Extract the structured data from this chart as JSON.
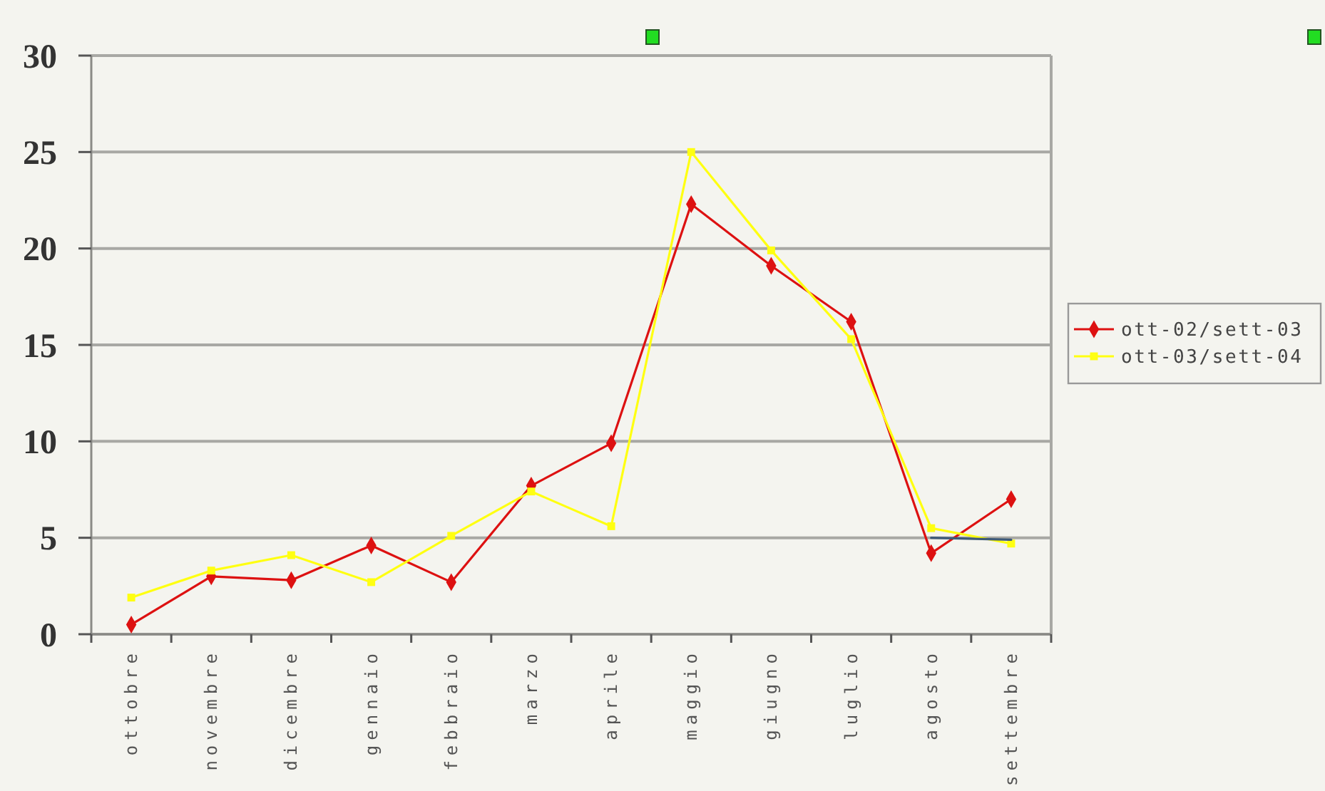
{
  "chart_data": {
    "type": "line",
    "categories": [
      "ottobre",
      "novembre",
      "dicembre",
      "gennaio",
      "febbraio",
      "marzo",
      "aprile",
      "maggio",
      "giugno",
      "luglio",
      "agosto",
      "settembre"
    ],
    "series": [
      {
        "name": "ott-02/sett-03",
        "color": "#dd1111",
        "marker": "diamond",
        "values": [
          0.5,
          3.0,
          2.8,
          4.6,
          2.7,
          7.7,
          9.9,
          22.3,
          19.1,
          16.2,
          4.2,
          7.0
        ]
      },
      {
        "name": "ott-03/sett-04",
        "color": "#ffff11",
        "marker": "square",
        "values": [
          1.9,
          3.3,
          4.1,
          2.7,
          5.1,
          7.4,
          5.6,
          25,
          19.9,
          15.3,
          5.5,
          4.7
        ]
      },
      {
        "color": "#3e5a78",
        "marker": "none",
        "values": [
          null,
          null,
          null,
          null,
          null,
          null,
          null,
          null,
          null,
          null,
          5.0,
          4.9
        ]
      }
    ],
    "ylim": [
      0,
      30
    ],
    "yticks": [
      0,
      5,
      10,
      15,
      20,
      25,
      30
    ],
    "grid": "y",
    "legend": "right",
    "line_style": "solid"
  }
}
